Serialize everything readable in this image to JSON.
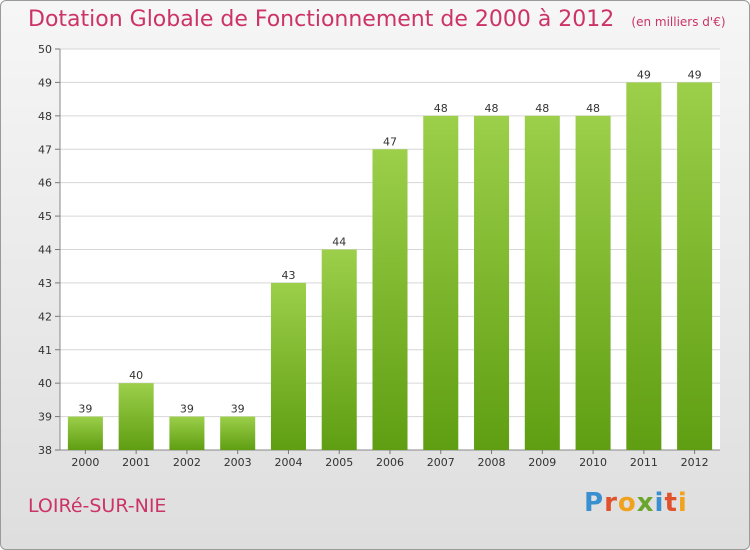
{
  "title": "Dotation Globale de Fonctionnement de 2000 à 2012",
  "unit_note": "(en milliers d'€)",
  "commune": "LOIRé-SUR-NIE",
  "brand": "Proxiti",
  "colors": {
    "title": "#cc3366",
    "bar_top": "#9ccf4a",
    "bar_bottom": "#5f9e12",
    "brand_letters": [
      "#3a8fd0",
      "#e0522b",
      "#f0a21e",
      "#6aa62e",
      "#3a8fd0",
      "#e0522b",
      "#f0a21e"
    ]
  },
  "chart_data": {
    "type": "bar",
    "categories": [
      "2000",
      "2001",
      "2002",
      "2003",
      "2004",
      "2005",
      "2006",
      "2007",
      "2008",
      "2009",
      "2010",
      "2011",
      "2012"
    ],
    "values": [
      39,
      40,
      39,
      39,
      43,
      44,
      47,
      48,
      48,
      48,
      48,
      49,
      49
    ],
    "ylim": [
      38,
      50
    ],
    "yticks": [
      38,
      39,
      40,
      41,
      42,
      43,
      44,
      45,
      46,
      47,
      48,
      49,
      50
    ],
    "grid": true,
    "data_labels": true
  }
}
